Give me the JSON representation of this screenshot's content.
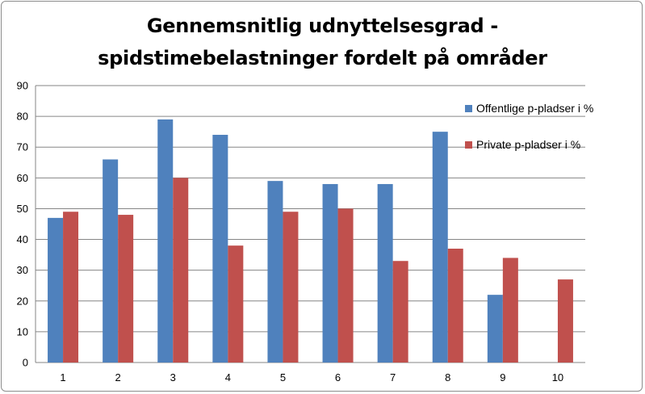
{
  "chart_data": {
    "type": "bar",
    "title_line1": "Gennemsnitlig udnyttelsesgrad -",
    "title_line2": "spidstimebelastninger fordelt på områder",
    "categories": [
      "1",
      "2",
      "3",
      "4",
      "5",
      "6",
      "7",
      "8",
      "9",
      "10"
    ],
    "series": [
      {
        "name": "Offentlige p-pladser i %",
        "color": "#4f81bd",
        "values": [
          47,
          66,
          79,
          74,
          59,
          58,
          58,
          75,
          22,
          null
        ]
      },
      {
        "name": "Private p-pladser i %",
        "color": "#c0504d",
        "values": [
          49,
          48,
          60,
          38,
          49,
          50,
          33,
          37,
          34,
          27
        ]
      }
    ],
    "yticks": [
      "0",
      "10",
      "20",
      "30",
      "40",
      "50",
      "60",
      "70",
      "80",
      "90"
    ],
    "ylim": [
      0,
      90
    ],
    "grid": true,
    "legend_position": "right"
  }
}
